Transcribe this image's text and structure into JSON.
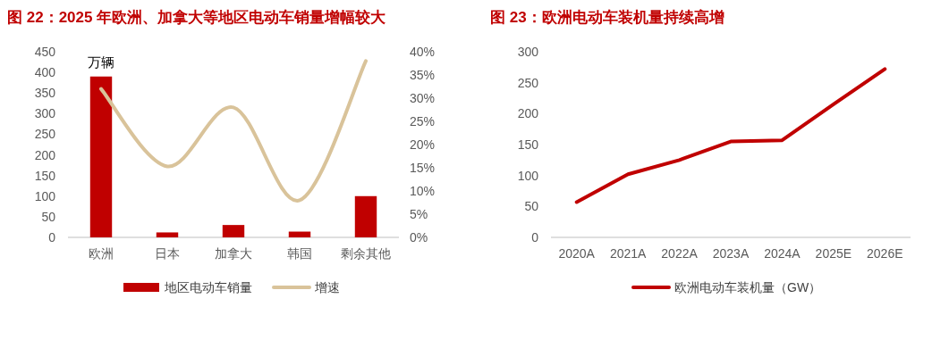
{
  "chart_data": [
    {
      "type": "bar",
      "title": "图 22：2025 年欧洲、加拿大等地区电动车销量增幅较大",
      "categories": [
        "欧洲",
        "日本",
        "加拿大",
        "韩国",
        "剩余其他"
      ],
      "series": [
        {
          "name": "地区电动车销量",
          "color": "#c00000",
          "values": [
            390,
            12,
            30,
            14,
            100
          ]
        },
        {
          "name": "增速",
          "type": "line",
          "axis": "y2",
          "color": "#d9c39a",
          "values": [
            32,
            15.3,
            28,
            8,
            38
          ]
        }
      ],
      "ylim": [
        0,
        450
      ],
      "yticks": [
        0,
        50,
        100,
        150,
        200,
        250,
        300,
        350,
        400,
        450
      ],
      "y2lim": [
        0,
        40
      ],
      "y2ticks": [
        {
          "value": 0,
          "label": "0%"
        },
        {
          "value": 5,
          "label": "5%"
        },
        {
          "value": 10,
          "label": "10%"
        },
        {
          "value": 15,
          "label": "15%"
        },
        {
          "value": 20,
          "label": "20%"
        },
        {
          "value": 25,
          "label": "25%"
        },
        {
          "value": 30,
          "label": "30%"
        },
        {
          "value": 35,
          "label": "35%"
        },
        {
          "value": 40,
          "label": "40%"
        }
      ],
      "annotations": [
        "万辆"
      ],
      "legend": "bottom",
      "grid": false
    },
    {
      "type": "line",
      "title": "图 23：欧洲电动车装机量持续高增",
      "categories": [
        "2020A",
        "2021A",
        "2022A",
        "2023A",
        "2024A",
        "2025E",
        "2026E"
      ],
      "series": [
        {
          "name": "欧洲电动车装机量（GW）",
          "color": "#c00000",
          "values": [
            57,
            102,
            125,
            155,
            157,
            215,
            272
          ]
        }
      ],
      "ylim": [
        0,
        300
      ],
      "yticks": [
        0,
        50,
        100,
        150,
        200,
        250,
        300
      ],
      "legend": "bottom",
      "grid": false,
      "marker": "none",
      "line_style": "solid"
    }
  ]
}
